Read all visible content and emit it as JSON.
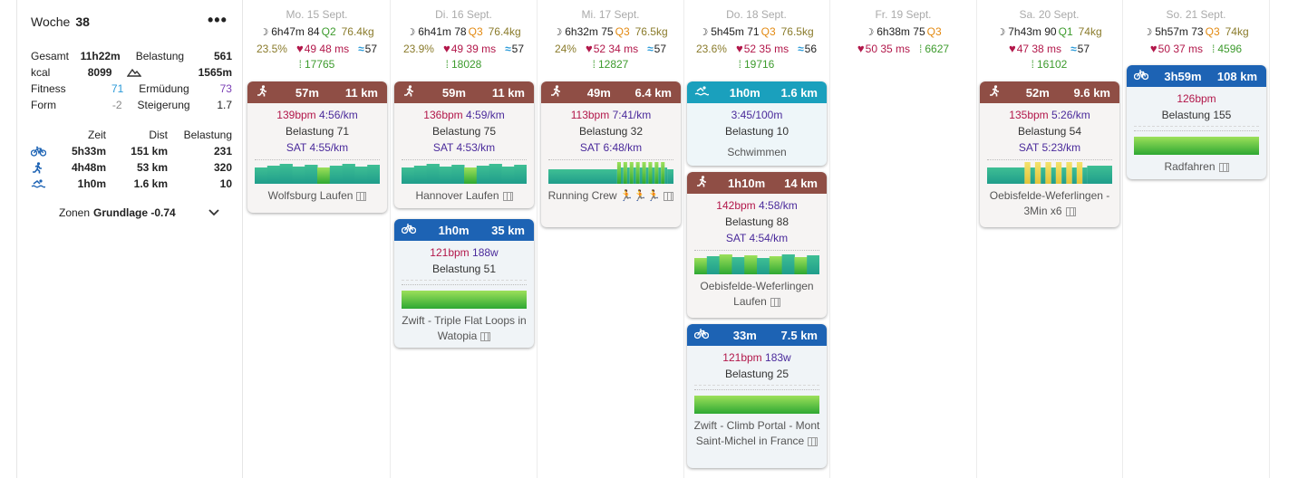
{
  "week": {
    "label": "Woche",
    "number": "38",
    "menu_glyph": "•••",
    "stats": [
      {
        "l1": "Gesamt",
        "v1": "11h22m",
        "l2": "Belastung",
        "v2": "561"
      },
      {
        "l1": "kcal",
        "v1": "8099",
        "l2": "",
        "v2": "1565m"
      },
      {
        "l1": "Fitness",
        "v1": "71",
        "l2": "Ermüdung",
        "v2": "73"
      },
      {
        "l1": "Form",
        "v1": "-2",
        "l2": "Steigerung",
        "v2": "1.7"
      }
    ],
    "sport_header": {
      "zeit": "Zeit",
      "dist": "Dist",
      "load": "Belastung"
    },
    "sports": [
      {
        "icon": "bike-icon",
        "zeit": "5h33m",
        "dist": "151 km",
        "load": "231"
      },
      {
        "icon": "run-icon",
        "zeit": "4h48m",
        "dist": "53 km",
        "load": "320"
      },
      {
        "icon": "swim-icon",
        "zeit": "1h0m",
        "dist": "1.6 km",
        "load": "10"
      }
    ],
    "zones_label": "Zonen",
    "zones_value": "Grundlage -0.74"
  },
  "days": [
    {
      "header": "Mo. 15 Sept.",
      "sleep": "6h47m",
      "sleep_score": "84",
      "quality": "Q2",
      "quality_color": "g",
      "weight": "76.4kg",
      "pct": "23.5%",
      "rhr": "49",
      "hrv": "48 ms",
      "swim_val": "57",
      "steps": "17765",
      "cards": [
        {
          "type": "run",
          "time": "57m",
          "dist": "11 km",
          "line1_hr": "139bpm",
          "line1_extra": "4:56/km",
          "load": "Belastung 71",
          "sat": "SAT 4:55/km",
          "name": "Wolfsburg Laufen"
        }
      ]
    },
    {
      "header": "Di. 16 Sept.",
      "sleep": "6h41m",
      "sleep_score": "78",
      "quality": "Q3",
      "quality_color": "o",
      "weight": "76.4kg",
      "pct": "23.9%",
      "rhr": "49",
      "hrv": "39 ms",
      "swim_val": "57",
      "steps": "18028",
      "cards": [
        {
          "type": "run",
          "time": "59m",
          "dist": "11 km",
          "line1_hr": "136bpm",
          "line1_extra": "4:59/km",
          "load": "Belastung 75",
          "sat": "SAT 4:53/km",
          "name": "Hannover Laufen"
        },
        {
          "type": "ride",
          "time": "1h0m",
          "dist": "35 km",
          "line1_hr": "121bpm",
          "line1_extra": "188w",
          "load": "Belastung 51",
          "sat": "",
          "name": "Zwift - Triple Flat Loops in Watopia"
        }
      ]
    },
    {
      "header": "Mi. 17 Sept.",
      "sleep": "6h32m",
      "sleep_score": "75",
      "quality": "Q3",
      "quality_color": "o",
      "weight": "76.5kg",
      "pct": "24%",
      "rhr": "52",
      "hrv": "34 ms",
      "swim_val": "57",
      "steps": "12827",
      "cards": [
        {
          "type": "run",
          "time": "49m",
          "dist": "6.4 km",
          "line1_hr": "113bpm",
          "line1_extra": "7:41/km",
          "load": "Belastung 32",
          "sat": "SAT 6:48/km",
          "name": "Running Crew",
          "emoji": "🏃🏃🏃"
        }
      ]
    },
    {
      "header": "Do. 18 Sept.",
      "sleep": "5h45m",
      "sleep_score": "71",
      "quality": "Q3",
      "quality_color": "o",
      "weight": "76.5kg",
      "pct": "23.6%",
      "rhr": "52",
      "hrv": "35 ms",
      "swim_val": "56",
      "steps": "19716",
      "cards": [
        {
          "type": "swim",
          "time": "1h0m",
          "dist": "1.6 km",
          "line1_hr": "",
          "line1_extra": "3:45/100m",
          "load": "Belastung 10",
          "sat": "",
          "name": "Schwimmen"
        },
        {
          "type": "run",
          "time": "1h10m",
          "dist": "14 km",
          "line1_hr": "142bpm",
          "line1_extra": "4:58/km",
          "load": "Belastung 88",
          "sat": "SAT 4:54/km",
          "name": "Oebisfelde-Weferlingen Laufen"
        },
        {
          "type": "ride",
          "time": "33m",
          "dist": "7.5 km",
          "line1_hr": "121bpm",
          "line1_extra": "183w",
          "load": "Belastung 25",
          "sat": "",
          "name": "Zwift - Climb Portal - Mont Saint-Michel in France"
        }
      ]
    },
    {
      "header": "Fr. 19 Sept.",
      "sleep": "6h38m",
      "sleep_score": "75",
      "quality": "Q3",
      "quality_color": "o",
      "weight": "",
      "pct": "",
      "rhr": "50",
      "hrv": "35 ms",
      "swim_val": "",
      "steps": "6627",
      "cards": []
    },
    {
      "header": "Sa. 20 Sept.",
      "sleep": "7h43m",
      "sleep_score": "90",
      "quality": "Q1",
      "quality_color": "g",
      "weight": "74kg",
      "pct": "",
      "rhr": "47",
      "hrv": "38 ms",
      "swim_val": "57",
      "steps": "16102",
      "cards": [
        {
          "type": "run",
          "time": "52m",
          "dist": "9.6 km",
          "line1_hr": "135bpm",
          "line1_extra": "5:26/km",
          "load": "Belastung 54",
          "sat": "SAT 5:23/km",
          "name": "Oebisfelde-Weferlingen - 3Min x6"
        }
      ]
    },
    {
      "header": "So. 21 Sept.",
      "sleep": "5h57m",
      "sleep_score": "73",
      "quality": "Q3",
      "quality_color": "o",
      "weight": "74kg",
      "pct": "",
      "rhr": "50",
      "hrv": "37 ms",
      "swim_val": "",
      "steps": "4596",
      "cards": [
        {
          "type": "ride",
          "time": "3h59m",
          "dist": "108 km",
          "line1_hr": "126bpm",
          "line1_extra": "",
          "load": "Belastung 155",
          "sat": "",
          "name": "Radfahren"
        }
      ]
    }
  ],
  "colors": {
    "run": "#8f4e45",
    "ride": "#1d63b4",
    "swim": "#1aa0bd",
    "hr": "#b2174a",
    "pace": "#4a2a9b",
    "steps": "#3d9b2d",
    "quality_orange": "#e38a12"
  }
}
